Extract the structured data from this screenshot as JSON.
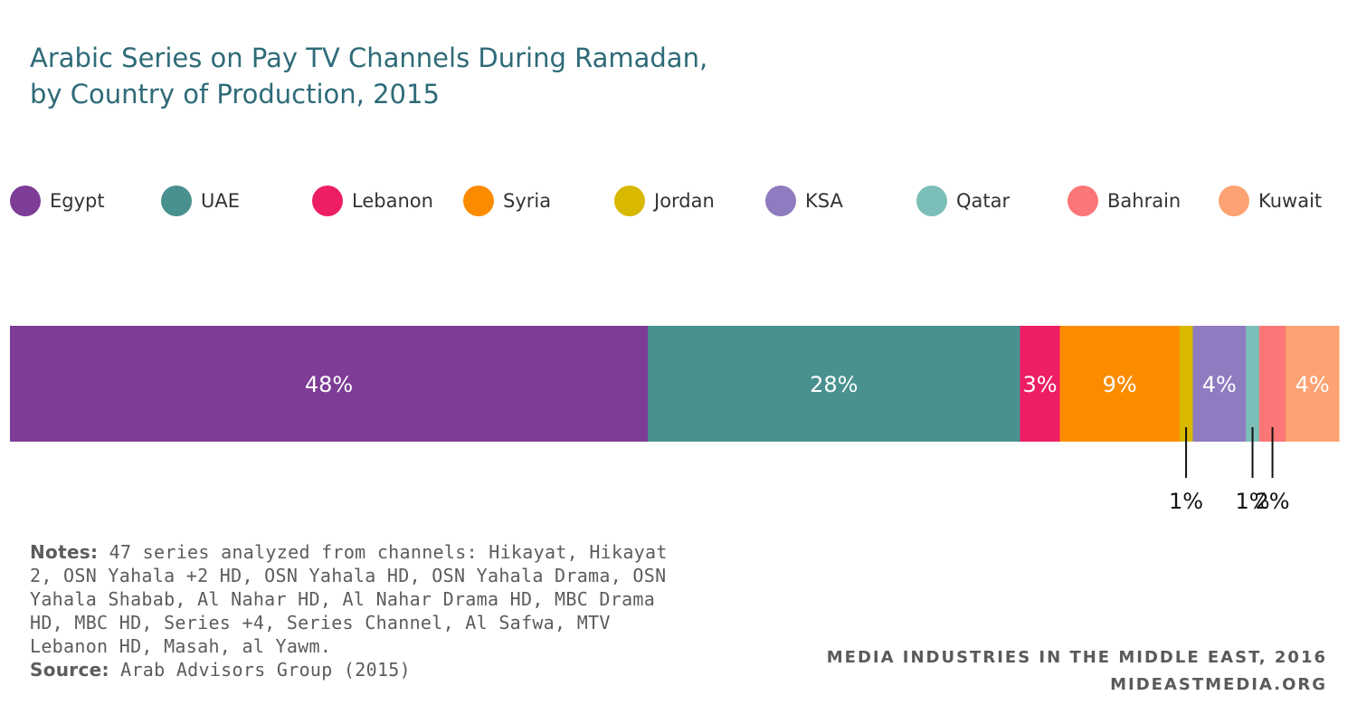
{
  "title_line1": "Arabic Series on Pay TV Channels During Ramadan,",
  "title_line2": "by Country of Production, 2015",
  "notes_label": "Notes:",
  "notes_text": "47 series analyzed from channels: Hikayat, Hikayat 2, OSN Yahala +2 HD, OSN Yahala HD, OSN Yahala Drama, OSN Yahala Shabab, Al Nahar HD, Al Nahar Drama HD, MBC Drama HD, MBC HD, Series +4, Series Channel, Al Safwa, MTV Lebanon HD, Masah, al Yawm.",
  "source_label": "Source:",
  "source_text": "Arab Advisors Group (2015)",
  "footer_line1": "MEDIA INDUSTRIES IN THE MIDDLE EAST, 2016",
  "footer_line2": "MIDEASTMEDIA.ORG",
  "chart_data": {
    "type": "bar",
    "stacked": true,
    "orientation": "horizontal",
    "title": "Arabic Series on Pay TV Channels During Ramadan, by Country of Production, 2015",
    "legend_position": "top",
    "series": [
      {
        "name": "Egypt",
        "value": 48,
        "label": "48%",
        "color": "#7d3c96",
        "label_placement": "inside"
      },
      {
        "name": "UAE",
        "value": 28,
        "label": "28%",
        "color": "#49918f",
        "label_placement": "inside"
      },
      {
        "name": "Lebanon",
        "value": 3,
        "label": "3%",
        "color": "#ee1e64",
        "label_placement": "inside"
      },
      {
        "name": "Syria",
        "value": 9,
        "label": "9%",
        "color": "#fb8c00",
        "label_placement": "inside"
      },
      {
        "name": "Jordan",
        "value": 1,
        "label": "1%",
        "color": "#d8b800",
        "label_placement": "below"
      },
      {
        "name": "KSA",
        "value": 4,
        "label": "4%",
        "color": "#8f7bbf",
        "label_placement": "inside"
      },
      {
        "name": "Qatar",
        "value": 1,
        "label": "1%",
        "color": "#7cbeb8",
        "label_placement": "below"
      },
      {
        "name": "Bahrain",
        "value": 2,
        "label": "2%",
        "color": "#fb7676",
        "label_placement": "below"
      },
      {
        "name": "Kuwait",
        "value": 4,
        "label": "4%",
        "color": "#fda272",
        "label_placement": "inside"
      }
    ]
  }
}
